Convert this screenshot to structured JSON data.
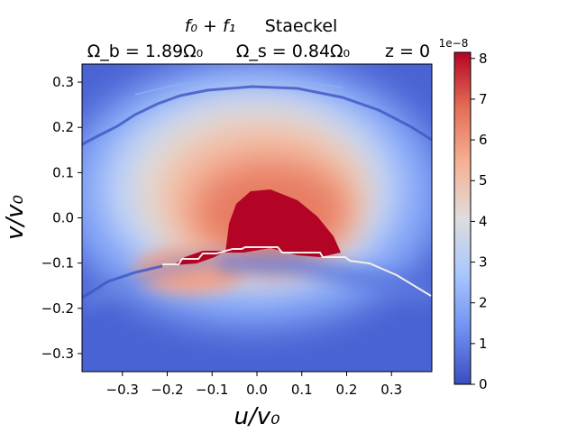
{
  "chart_data": {
    "type": "heatmap",
    "title_parts": {
      "model": "f₀ + f₁",
      "potential": "Staeckel",
      "omega_b": "Ω_b = 1.89Ω₀",
      "omega_s": "Ω_s = 0.84Ω₀",
      "z": "z = 0"
    },
    "xlabel": "u/v₀",
    "ylabel": "v/v₀",
    "xlim": [
      -0.39,
      0.39
    ],
    "ylim": [
      -0.34,
      0.34
    ],
    "x_ticks": [
      -0.3,
      -0.2,
      -0.1,
      0.0,
      0.1,
      0.2,
      0.3
    ],
    "x_tick_labels": [
      "−0.3",
      "−0.2",
      "−0.1",
      "0.0",
      "0.1",
      "0.2",
      "0.3"
    ],
    "y_ticks": [
      0.3,
      0.2,
      0.1,
      0.0,
      -0.1,
      -0.2,
      -0.3
    ],
    "y_tick_labels": [
      "0.3",
      "0.2",
      "0.1",
      "0.0",
      "−0.1",
      "−0.2",
      "−0.3"
    ],
    "colorbar": {
      "min": 0,
      "max": 8.15,
      "ticks": [
        0,
        1,
        2,
        3,
        4,
        5,
        6,
        7,
        8
      ],
      "tick_labels": [
        "0",
        "1",
        "2",
        "3",
        "4",
        "5",
        "6",
        "7",
        "8"
      ],
      "scale_label": "1e−8",
      "colormap": "coolwarm",
      "colormap_stops": [
        "#3b4cc0",
        "#6f91f2",
        "#aac7fd",
        "#dddddd",
        "#f6b194",
        "#e46e56",
        "#b40426"
      ]
    },
    "peak_region": {
      "u_range": [
        -0.04,
        0.17
      ],
      "v_range": [
        -0.07,
        0.06
      ],
      "value": "saturated (>8e-8)"
    },
    "discontinuity_v": -0.07
  }
}
